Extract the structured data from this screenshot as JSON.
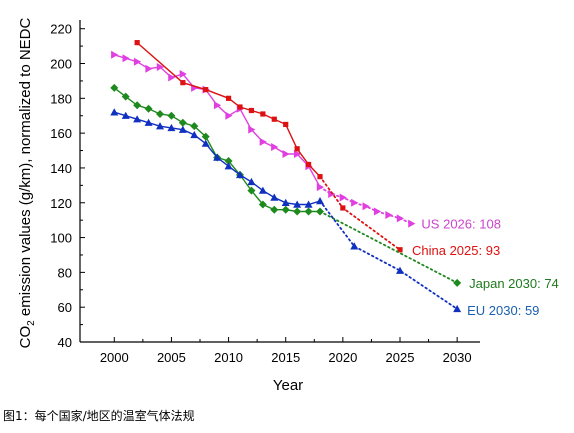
{
  "caption": "图1：每个国家/地区的温室气体法规",
  "chart_data": {
    "type": "line",
    "xlabel": "Year",
    "ylabel": "emission values (g/km), normalized to NEDC",
    "ylabel_prefix": "CO",
    "ylabel_sub": "2",
    "xlim": [
      1997,
      2032
    ],
    "ylim": [
      40,
      225
    ],
    "xticks": [
      2000,
      2005,
      2010,
      2015,
      2020,
      2025,
      2030
    ],
    "yticks": [
      40,
      60,
      80,
      100,
      120,
      140,
      160,
      180,
      200,
      220
    ],
    "grid": false,
    "series": [
      {
        "key": "us",
        "color": "#e040e0",
        "marker": "triangle-right",
        "x": [
          2000,
          2001,
          2002,
          2003,
          2004,
          2005,
          2006,
          2007,
          2008,
          2009,
          2010,
          2011,
          2012,
          2013,
          2014,
          2015,
          2016,
          2017,
          2018
        ],
        "values": [
          205,
          203,
          201,
          197,
          198,
          192,
          194,
          186,
          185,
          176,
          170,
          174,
          162,
          155,
          152,
          148,
          148,
          141,
          129
        ],
        "target": {
          "x": [
            2019,
            2020,
            2021,
            2022,
            2023,
            2024,
            2025,
            2026
          ],
          "values": [
            125,
            123,
            120,
            118,
            115,
            113,
            111,
            108
          ],
          "label": "US 2026: 108"
        }
      },
      {
        "key": "china",
        "color": "#dd1111",
        "marker": "square",
        "x": [
          2002,
          2006,
          2008,
          2010,
          2011,
          2012,
          2013,
          2014,
          2015,
          2016,
          2017,
          2018
        ],
        "values": [
          212,
          189,
          185,
          180,
          175,
          173,
          171,
          168,
          165,
          151,
          142,
          135
        ],
        "target": {
          "x": [
            2020,
            2025
          ],
          "values": [
            117,
            93
          ],
          "label": "China 2025: 93"
        }
      },
      {
        "key": "japan",
        "color": "#1e8a1e",
        "marker": "diamond",
        "x": [
          2000,
          2001,
          2002,
          2003,
          2004,
          2005,
          2006,
          2007,
          2008,
          2009,
          2010,
          2011,
          2012,
          2013,
          2014,
          2015,
          2016,
          2017,
          2018
        ],
        "values": [
          186,
          181,
          176,
          174,
          171,
          170,
          166,
          164,
          158,
          146,
          144,
          136,
          127,
          119,
          116,
          116,
          115,
          115,
          115
        ],
        "target": {
          "x": [
            2030
          ],
          "values": [
            74
          ],
          "label": "Japan 2030: 74"
        }
      },
      {
        "key": "eu",
        "color": "#1030c0",
        "marker": "triangle-up",
        "x": [
          2000,
          2001,
          2002,
          2003,
          2004,
          2005,
          2006,
          2007,
          2008,
          2009,
          2010,
          2011,
          2012,
          2013,
          2014,
          2015,
          2016,
          2017,
          2018
        ],
        "values": [
          172,
          170,
          168,
          166,
          164,
          163,
          162,
          159,
          154,
          146,
          141,
          136,
          132,
          127,
          123,
          120,
          119,
          119,
          121
        ],
        "target": {
          "x": [
            2021,
            2025,
            2030
          ],
          "values": [
            95,
            81,
            59
          ],
          "label": "EU 2030: 59"
        }
      }
    ]
  },
  "annotation_colors": {
    "us": "#cc44cc",
    "china": "#dd1111",
    "japan": "#1e7a1e",
    "eu": "#1a5fb0"
  }
}
